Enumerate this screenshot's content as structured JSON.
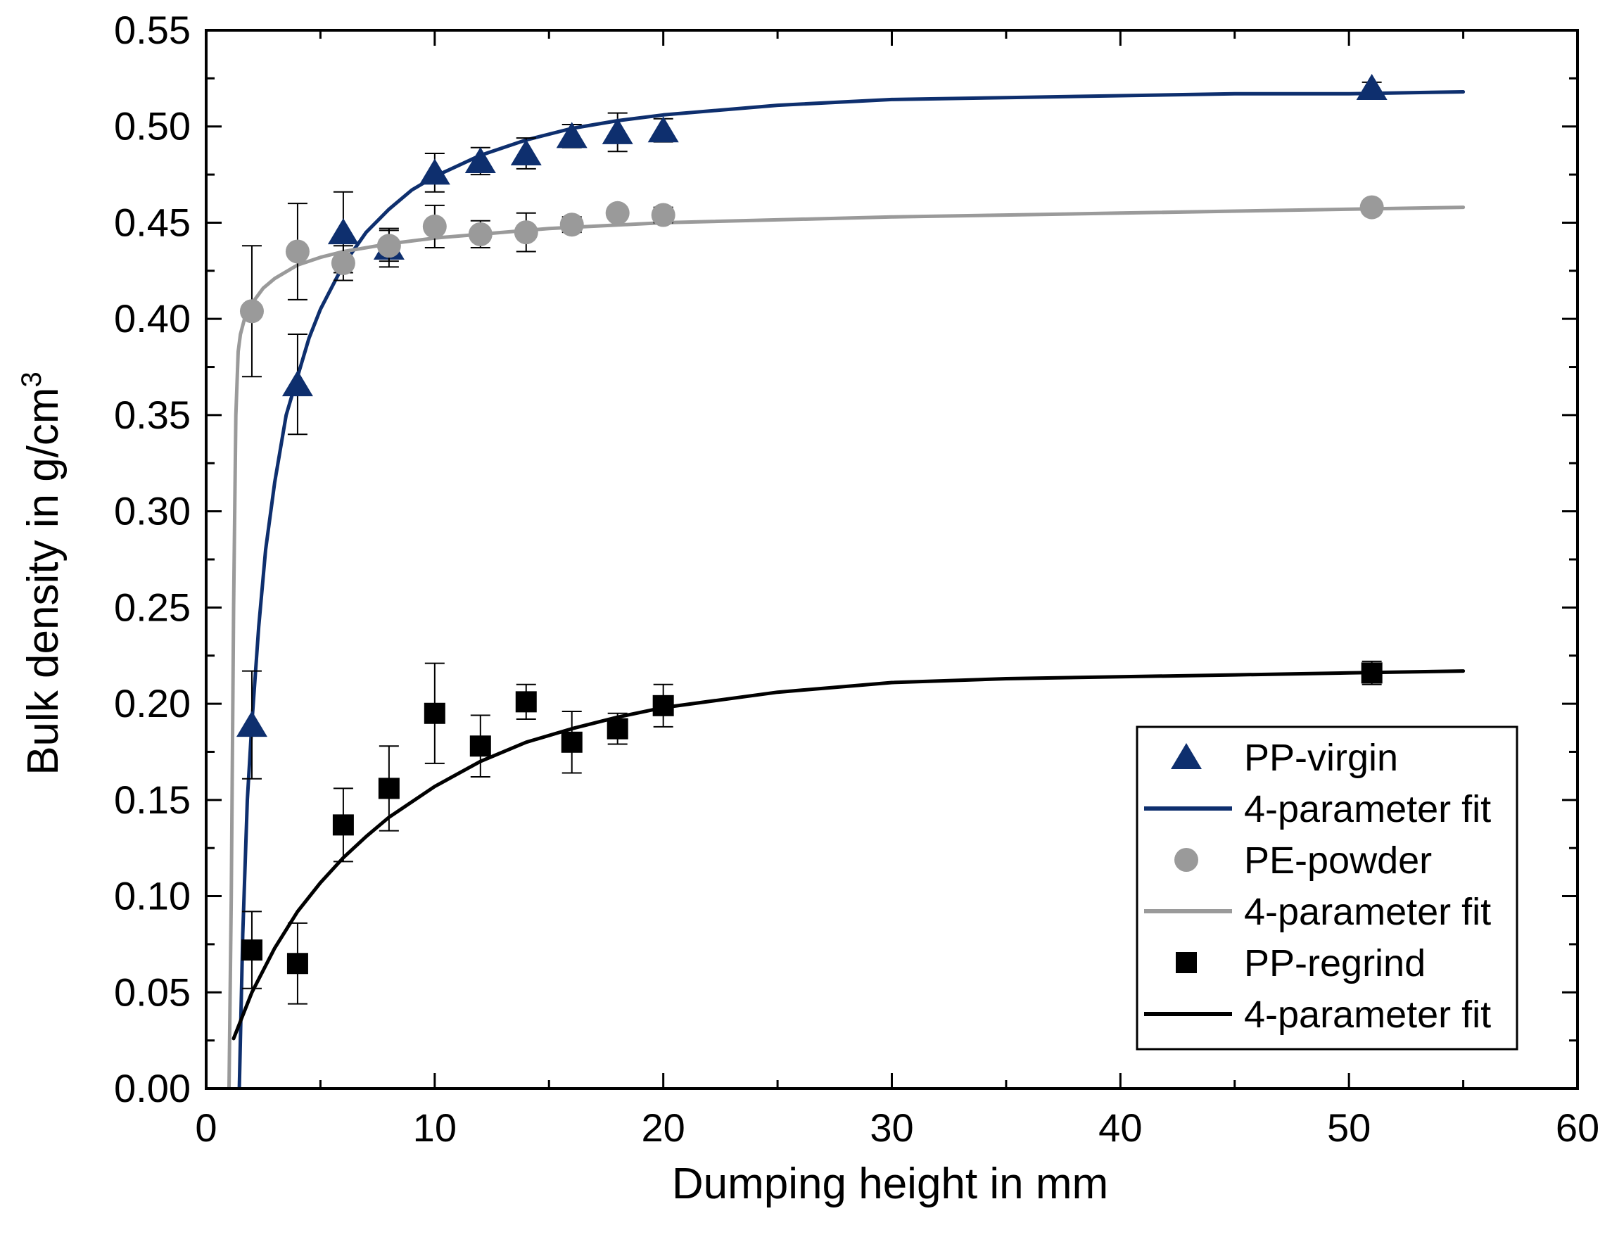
{
  "chart_data": {
    "type": "scatter",
    "title": "",
    "xlabel": "Dumping height in mm",
    "ylabel": {
      "base": "Bulk density in g/cm",
      "superscript": "3"
    },
    "xlim": [
      0,
      60
    ],
    "ylim": [
      0,
      0.55
    ],
    "x_ticks": [
      0,
      10,
      20,
      30,
      40,
      50,
      60
    ],
    "x_tick_labels": [
      "0",
      "10",
      "20",
      "30",
      "40",
      "50",
      "60"
    ],
    "y_ticks": [
      0,
      0.05,
      0.1,
      0.15,
      0.2,
      0.25,
      0.3,
      0.35,
      0.4,
      0.45,
      0.5,
      0.55
    ],
    "y_tick_labels": [
      "0.00",
      "0.05",
      "0.10",
      "0.15",
      "0.20",
      "0.25",
      "0.30",
      "0.35",
      "0.40",
      "0.45",
      "0.50",
      "0.55"
    ],
    "grid": false,
    "legend_position": "bottom-right",
    "series": [
      {
        "name": "PP-virgin",
        "kind": "points",
        "marker": "triangle",
        "color": "#0e2f6e",
        "x": [
          2,
          4,
          6,
          8,
          10,
          12,
          14,
          16,
          18,
          20,
          51
        ],
        "y": [
          0.189,
          0.366,
          0.445,
          0.437,
          0.476,
          0.482,
          0.486,
          0.495,
          0.497,
          0.498,
          0.52
        ],
        "err": [
          0.028,
          0.026,
          0.021,
          0.01,
          0.01,
          0.007,
          0.008,
          0.006,
          0.01,
          0.006,
          0.003
        ]
      },
      {
        "name": "4-parameter fit",
        "kind": "line",
        "color": "#0e2f6e",
        "x": [
          1.45,
          1.6,
          1.8,
          2,
          2.3,
          2.6,
          3,
          3.5,
          4,
          4.5,
          5,
          6,
          7,
          8,
          9,
          10,
          12,
          14,
          16,
          18,
          20,
          25,
          30,
          35,
          40,
          45,
          50,
          55
        ],
        "y": [
          0.0,
          0.08,
          0.15,
          0.19,
          0.24,
          0.28,
          0.315,
          0.35,
          0.37,
          0.39,
          0.405,
          0.428,
          0.445,
          0.457,
          0.467,
          0.474,
          0.485,
          0.493,
          0.499,
          0.503,
          0.506,
          0.511,
          0.514,
          0.515,
          0.516,
          0.517,
          0.517,
          0.518
        ]
      },
      {
        "name": "PE-powder",
        "kind": "points",
        "marker": "circle",
        "color": "#9a9a9a",
        "x": [
          2,
          4,
          6,
          8,
          10,
          12,
          14,
          16,
          18,
          20,
          51
        ],
        "y": [
          0.404,
          0.435,
          0.429,
          0.438,
          0.448,
          0.444,
          0.445,
          0.449,
          0.455,
          0.454,
          0.458
        ],
        "err": [
          0.034,
          0.025,
          0.009,
          0.008,
          0.011,
          0.007,
          0.01,
          0.004,
          0.003,
          0.004,
          0.002
        ]
      },
      {
        "name": "4-parameter fit",
        "kind": "line",
        "color": "#9a9a9a",
        "x": [
          1.0,
          1.1,
          1.2,
          1.3,
          1.4,
          1.5,
          1.7,
          2,
          2.5,
          3,
          4,
          5,
          6,
          8,
          10,
          12,
          15,
          20,
          30,
          40,
          55
        ],
        "y": [
          0.0,
          0.1,
          0.25,
          0.35,
          0.383,
          0.392,
          0.401,
          0.408,
          0.416,
          0.421,
          0.428,
          0.432,
          0.435,
          0.439,
          0.442,
          0.444,
          0.447,
          0.45,
          0.453,
          0.455,
          0.458
        ]
      },
      {
        "name": "PP-regrind",
        "kind": "points",
        "marker": "square",
        "color": "#000000",
        "x": [
          2,
          4,
          6,
          8,
          10,
          12,
          14,
          16,
          18,
          20,
          51
        ],
        "y": [
          0.072,
          0.065,
          0.137,
          0.156,
          0.195,
          0.178,
          0.201,
          0.18,
          0.187,
          0.199,
          0.216
        ],
        "err": [
          0.02,
          0.021,
          0.019,
          0.022,
          0.026,
          0.016,
          0.009,
          0.016,
          0.008,
          0.011,
          0.006
        ]
      },
      {
        "name": "4-parameter fit",
        "kind": "line",
        "color": "#000000",
        "x": [
          1.2,
          2,
          3,
          4,
          5,
          6,
          7,
          8,
          10,
          12,
          14,
          16,
          18,
          20,
          25,
          30,
          35,
          40,
          45,
          50,
          55
        ],
        "y": [
          0.026,
          0.05,
          0.073,
          0.092,
          0.107,
          0.12,
          0.131,
          0.141,
          0.157,
          0.17,
          0.18,
          0.187,
          0.193,
          0.198,
          0.206,
          0.211,
          0.213,
          0.214,
          0.215,
          0.216,
          0.217
        ]
      }
    ]
  }
}
